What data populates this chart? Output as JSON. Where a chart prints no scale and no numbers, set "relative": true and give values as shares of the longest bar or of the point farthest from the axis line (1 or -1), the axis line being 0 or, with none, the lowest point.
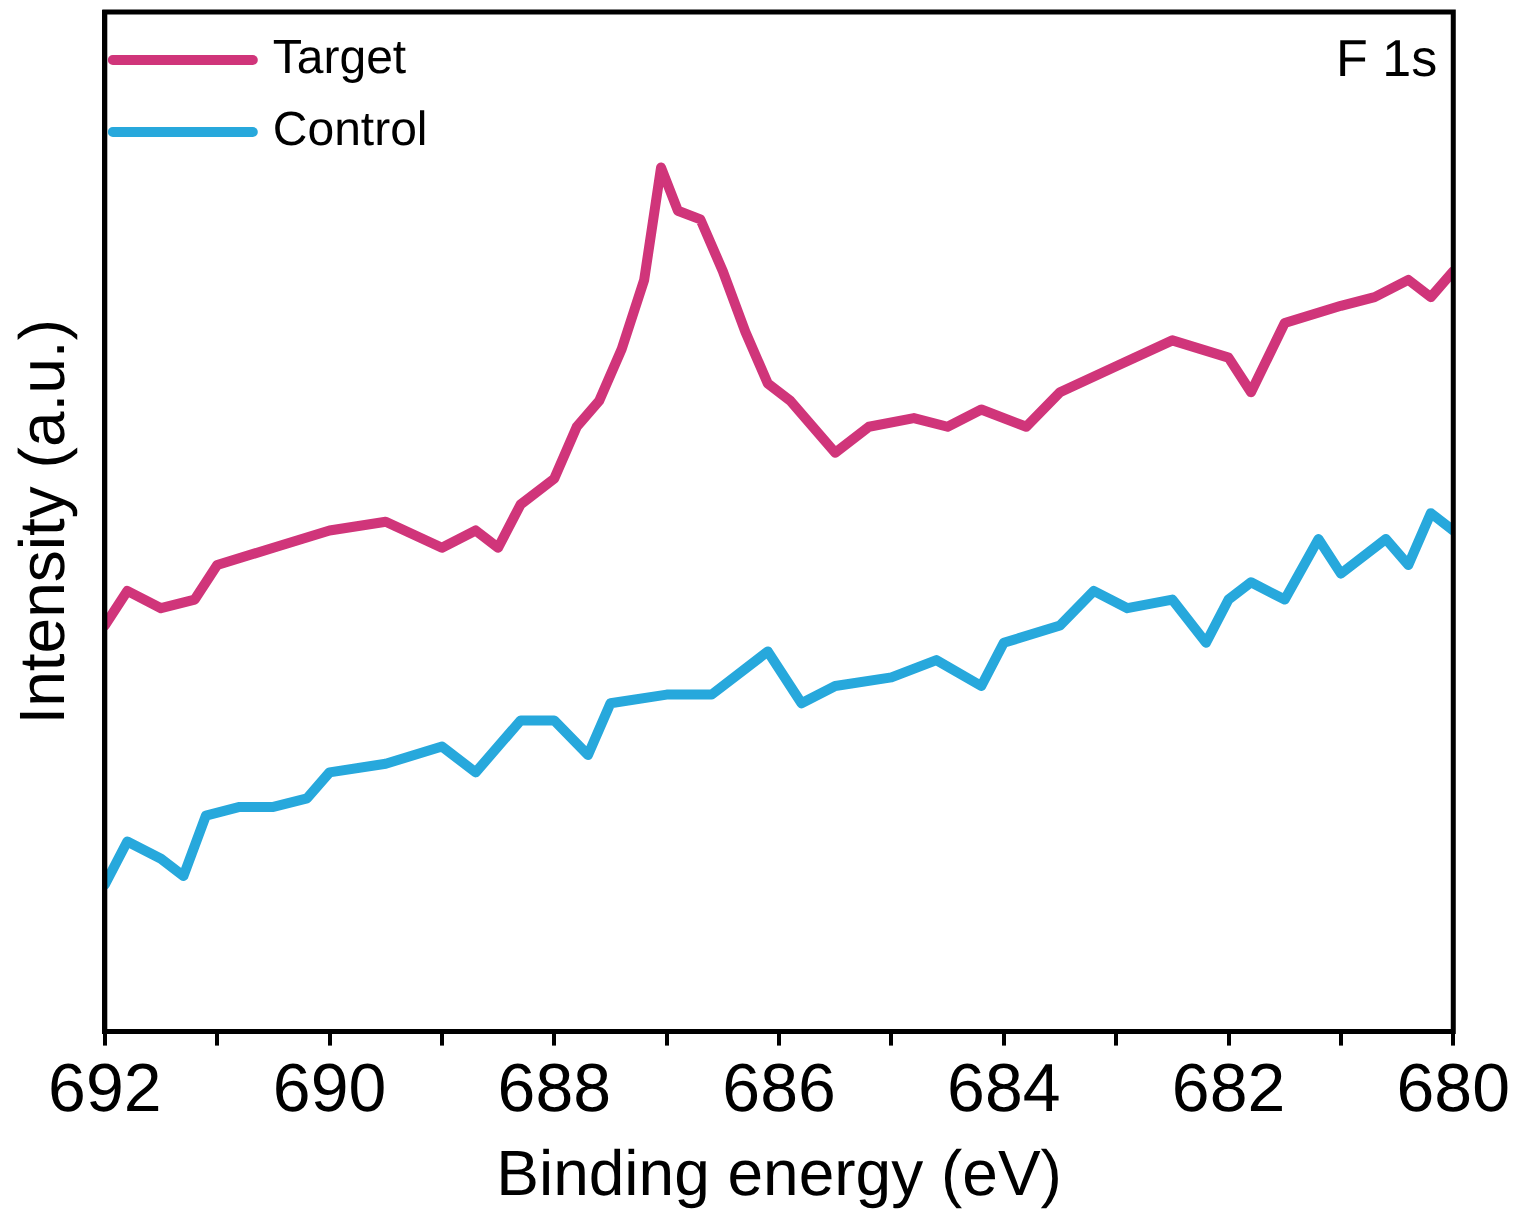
{
  "chart_data": {
    "type": "line",
    "xlabel": "Binding energy (eV)",
    "ylabel": "Intensity (a.u.)",
    "relative": true,
    "xlim": [
      692,
      680
    ],
    "xticks": [
      692,
      {
        "value": 691,
        "label": null
      },
      690,
      {
        "value": 689,
        "label": null
      },
      688,
      {
        "value": 687,
        "label": null
      },
      686,
      {
        "value": 685,
        "label": null
      },
      684,
      {
        "value": 683,
        "label": null
      },
      682,
      {
        "value": 681,
        "label": null
      },
      680
    ],
    "legend": "top left",
    "marker": "none",
    "line_style": "solid",
    "grid": false,
    "annotations": [
      "F 1s"
    ],
    "series": [
      {
        "name": "Target",
        "color": "#d0357a",
        "x": [
          692,
          691.8,
          691.5,
          691.2,
          691,
          690.5,
          690,
          689.5,
          689,
          688.7,
          688.5,
          688.3,
          688,
          687.8,
          687.6,
          687.4,
          687.2,
          687.05,
          686.9,
          686.7,
          686.5,
          686.3,
          686.1,
          685.9,
          685.7,
          685.5,
          685.2,
          684.8,
          684.5,
          684.2,
          683.8,
          683.5,
          683,
          682.5,
          682,
          681.8,
          681.5,
          681,
          680.7,
          680.4,
          680.2,
          680
        ],
        "values": [
          0.47,
          0.51,
          0.49,
          0.5,
          0.54,
          0.56,
          0.58,
          0.59,
          0.56,
          0.58,
          0.56,
          0.61,
          0.64,
          0.7,
          0.73,
          0.79,
          0.87,
          1,
          0.95,
          0.94,
          0.88,
          0.81,
          0.75,
          0.73,
          0.7,
          0.67,
          0.7,
          0.71,
          0.7,
          0.72,
          0.7,
          0.74,
          0.77,
          0.8,
          0.78,
          0.74,
          0.82,
          0.84,
          0.85,
          0.87,
          0.85,
          0.88
        ]
      },
      {
        "name": "Control",
        "color": "#27a8dc",
        "x": [
          692,
          691.8,
          691.5,
          691.3,
          691.1,
          690.8,
          690.5,
          690.2,
          690,
          689.5,
          689,
          688.7,
          688.3,
          688,
          687.7,
          687.5,
          687,
          686.6,
          686.3,
          686.1,
          685.8,
          685.5,
          685,
          684.6,
          684.2,
          684,
          683.5,
          683.2,
          682.9,
          682.5,
          682.2,
          682,
          681.8,
          681.5,
          681.2,
          681,
          680.6,
          680.4,
          680.2,
          680
        ],
        "values": [
          0.17,
          0.22,
          0.2,
          0.18,
          0.25,
          0.26,
          0.26,
          0.27,
          0.3,
          0.31,
          0.33,
          0.3,
          0.36,
          0.36,
          0.32,
          0.38,
          0.39,
          0.39,
          0.42,
          0.44,
          0.38,
          0.4,
          0.41,
          0.43,
          0.4,
          0.45,
          0.47,
          0.51,
          0.49,
          0.5,
          0.45,
          0.5,
          0.52,
          0.5,
          0.57,
          0.53,
          0.57,
          0.54,
          0.6,
          0.58
        ]
      }
    ]
  }
}
